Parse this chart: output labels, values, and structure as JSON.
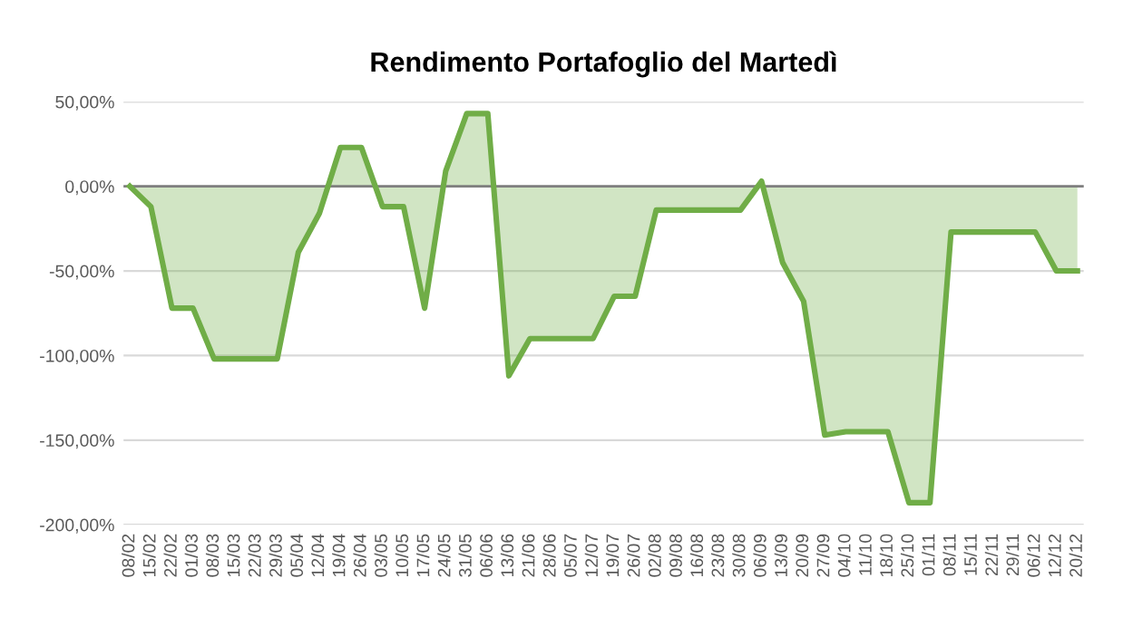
{
  "chart_data": {
    "type": "area",
    "title": "Rendimento Portafoglio del Martedì",
    "categories": [
      "08/02",
      "15/02",
      "22/02",
      "01/03",
      "08/03",
      "15/03",
      "22/03",
      "29/03",
      "05/04",
      "12/04",
      "19/04",
      "26/04",
      "03/05",
      "10/05",
      "17/05",
      "24/05",
      "31/05",
      "06/06",
      "13/06",
      "21/06",
      "28/06",
      "05/07",
      "12/07",
      "19/07",
      "26/07",
      "02/08",
      "09/08",
      "16/08",
      "23/08",
      "30/08",
      "06/09",
      "13/09",
      "20/09",
      "27/09",
      "04/10",
      "11/10",
      "18/10",
      "25/10",
      "01/11",
      "08/11",
      "15/11",
      "22/11",
      "29/11",
      "06/12",
      "12/12",
      "20/12"
    ],
    "series": [
      {
        "color": "#70ad47",
        "values": [
          0,
          -12,
          -72,
          -72,
          -102,
          -102,
          -102,
          -102,
          -39,
          -16,
          23,
          23,
          -12,
          -12,
          -72,
          9,
          43,
          43,
          -112,
          -90,
          -90,
          -90,
          -90,
          -65,
          -65,
          -14,
          -14,
          -14,
          -14,
          -14,
          3,
          -45,
          -68,
          -147,
          -145,
          -145,
          -145,
          -187,
          -187,
          -27,
          -27,
          -27,
          -27,
          -27,
          -50,
          -50
        ]
      }
    ],
    "ylim": [
      -200,
      50
    ],
    "yticks": [
      {
        "value": 50,
        "label": "50,00%"
      },
      {
        "value": 0,
        "label": "0,00%"
      },
      {
        "value": -50,
        "label": "-50,00%"
      },
      {
        "value": -100,
        "label": "-100,00%"
      },
      {
        "value": -150,
        "label": "-150,00%"
      },
      {
        "value": -200,
        "label": "-200,00%"
      }
    ],
    "grid": "y",
    "legend": false
  }
}
